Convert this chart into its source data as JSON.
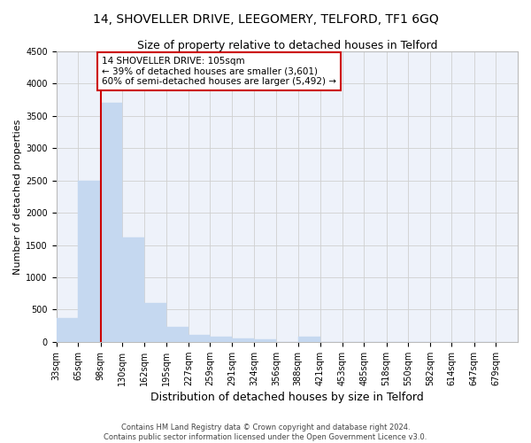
{
  "title": "14, SHOVELLER DRIVE, LEEGOMERY, TELFORD, TF1 6GQ",
  "subtitle": "Size of property relative to detached houses in Telford",
  "xlabel": "Distribution of detached houses by size in Telford",
  "ylabel": "Number of detached properties",
  "footer_line1": "Contains HM Land Registry data © Crown copyright and database right 2024.",
  "footer_line2": "Contains public sector information licensed under the Open Government Licence v3.0.",
  "bins": [
    33,
    65,
    98,
    130,
    162,
    195,
    227,
    259,
    291,
    324,
    356,
    388,
    421,
    453,
    485,
    518,
    550,
    582,
    614,
    647,
    679
  ],
  "bar_heights": [
    370,
    2500,
    3700,
    1620,
    600,
    230,
    110,
    80,
    55,
    45,
    0,
    80,
    0,
    0,
    0,
    0,
    0,
    0,
    0,
    0
  ],
  "bar_color": "#c5d8f0",
  "bar_edgecolor": "#c5d8f0",
  "grid_color": "#d0d0d0",
  "property_line_x": 98,
  "property_line_color": "#cc0000",
  "annotation_text": "14 SHOVELLER DRIVE: 105sqm\n← 39% of detached houses are smaller (3,601)\n60% of semi-detached houses are larger (5,492) →",
  "annotation_box_color": "#ffffff",
  "annotation_box_edgecolor": "#cc0000",
  "ylim": [
    0,
    4500
  ],
  "yticks": [
    0,
    500,
    1000,
    1500,
    2000,
    2500,
    3000,
    3500,
    4000,
    4500
  ],
  "title_fontsize": 10,
  "subtitle_fontsize": 9,
  "xlabel_fontsize": 9,
  "ylabel_fontsize": 8,
  "tick_fontsize": 7,
  "annotation_fontsize": 7.5,
  "footer_fontsize": 6,
  "background_color": "#ffffff",
  "plot_background_color": "#eef2fa"
}
